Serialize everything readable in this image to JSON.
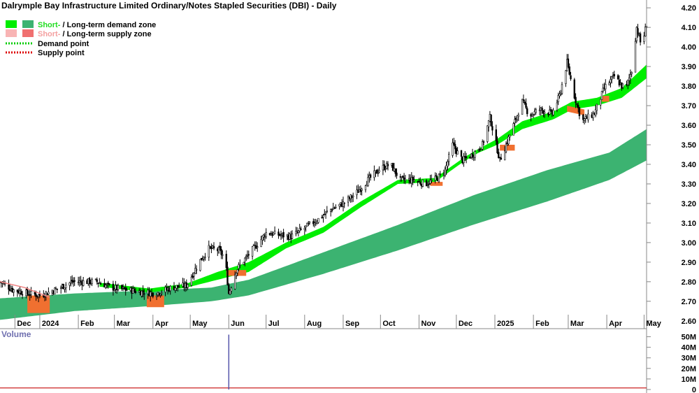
{
  "title": "Dalrymple Bay Infrastructure Limited Ordinary/Notes Stapled Securities (DBI) - Daily",
  "legend": [
    {
      "parts": [
        {
          "text": "Short-",
          "color": "#22dd22"
        },
        {
          "text": " / ",
          "color": "#000000"
        },
        {
          "text": "Long-term demand zone",
          "color": "#000000"
        }
      ],
      "swatches": [
        "#00ee00",
        "#3cb371"
      ]
    },
    {
      "parts": [
        {
          "text": "Short-",
          "color": "#f4a0a0"
        },
        {
          "text": " / ",
          "color": "#000000"
        },
        {
          "text": "Long-term supply zone",
          "color": "#000000"
        }
      ],
      "swatches": [
        "#f8b4b4",
        "#f07070"
      ]
    },
    {
      "parts": [
        {
          "text": "Demand point",
          "color": "#000000"
        }
      ],
      "dotted": "#00cc00"
    },
    {
      "parts": [
        {
          "text": "Supply point",
          "color": "#000000"
        }
      ],
      "dotted": "#dd0000"
    }
  ],
  "colors": {
    "short_demand": "#00ee00",
    "long_demand": "#3cb371",
    "supply": "#f07030",
    "candle": "#000000",
    "volume_line": "#cc2222",
    "volume_spike": "#5555aa",
    "axis": "#888888"
  },
  "chart_data": {
    "type": "line",
    "x_axis": {
      "months": [
        {
          "label": "Dec",
          "day": 12
        },
        {
          "label": "2024",
          "day": 32
        },
        {
          "label": "Feb",
          "day": 63
        },
        {
          "label": "Mar",
          "day": 92
        },
        {
          "label": "Apr",
          "day": 123
        },
        {
          "label": "May",
          "day": 153
        },
        {
          "label": "Jun",
          "day": 184
        },
        {
          "label": "Jul",
          "day": 214
        },
        {
          "label": "Aug",
          "day": 245
        },
        {
          "label": "Sep",
          "day": 276
        },
        {
          "label": "Oct",
          "day": 306
        },
        {
          "label": "Nov",
          "day": 337
        },
        {
          "label": "Dec",
          "day": 367
        },
        {
          "label": "2025",
          "day": 398
        },
        {
          "label": "Feb",
          "day": 429
        },
        {
          "label": "Mar",
          "day": 457
        },
        {
          "label": "Apr",
          "day": 488
        },
        {
          "label": "May",
          "day": 518
        }
      ],
      "range": [
        0,
        520
      ]
    },
    "y_axis": {
      "ticks": [
        "2.60",
        "2.70",
        "2.80",
        "2.90",
        "3.00",
        "3.10",
        "3.20",
        "3.30",
        "3.40",
        "3.50",
        "3.60",
        "3.70",
        "3.80",
        "3.90",
        "4.00",
        "4.10",
        "4.20"
      ],
      "range": [
        2.56,
        4.24
      ]
    },
    "price_path": [
      [
        0,
        2.8
      ],
      [
        10,
        2.76
      ],
      [
        22,
        2.74
      ],
      [
        32,
        2.73
      ],
      [
        45,
        2.76
      ],
      [
        58,
        2.8
      ],
      [
        68,
        2.8
      ],
      [
        78,
        2.8
      ],
      [
        90,
        2.77
      ],
      [
        100,
        2.76
      ],
      [
        112,
        2.75
      ],
      [
        125,
        2.74
      ],
      [
        138,
        2.77
      ],
      [
        150,
        2.78
      ],
      [
        160,
        2.9
      ],
      [
        168,
        2.97
      ],
      [
        176,
        2.96
      ],
      [
        181,
        2.92
      ],
      [
        184,
        2.74
      ],
      [
        190,
        2.86
      ],
      [
        200,
        2.94
      ],
      [
        208,
        3.0
      ],
      [
        214,
        3.05
      ],
      [
        224,
        3.04
      ],
      [
        234,
        3.03
      ],
      [
        244,
        3.07
      ],
      [
        256,
        3.12
      ],
      [
        266,
        3.17
      ],
      [
        276,
        3.2
      ],
      [
        286,
        3.25
      ],
      [
        296,
        3.32
      ],
      [
        306,
        3.38
      ],
      [
        314,
        3.4
      ],
      [
        322,
        3.32
      ],
      [
        332,
        3.32
      ],
      [
        342,
        3.3
      ],
      [
        352,
        3.33
      ],
      [
        358,
        3.37
      ],
      [
        364,
        3.5
      ],
      [
        372,
        3.42
      ],
      [
        380,
        3.45
      ],
      [
        388,
        3.5
      ],
      [
        394,
        3.64
      ],
      [
        402,
        3.42
      ],
      [
        410,
        3.55
      ],
      [
        420,
        3.72
      ],
      [
        426,
        3.65
      ],
      [
        434,
        3.68
      ],
      [
        444,
        3.66
      ],
      [
        450,
        3.75
      ],
      [
        456,
        3.92
      ],
      [
        462,
        3.75
      ],
      [
        468,
        3.62
      ],
      [
        478,
        3.66
      ],
      [
        486,
        3.79
      ],
      [
        494,
        3.85
      ],
      [
        500,
        3.8
      ],
      [
        504,
        3.8
      ],
      [
        508,
        3.88
      ],
      [
        512,
        4.1
      ],
      [
        516,
        4.0
      ],
      [
        520,
        4.12
      ]
    ],
    "short_term_demand_zone": {
      "upper": [
        [
          80,
          2.795
        ],
        [
          120,
          2.765
        ],
        [
          150,
          2.79
        ],
        [
          175,
          2.85
        ],
        [
          200,
          2.9
        ],
        [
          230,
          3.0
        ],
        [
          260,
          3.08
        ],
        [
          290,
          3.21
        ],
        [
          320,
          3.32
        ],
        [
          350,
          3.33
        ],
        [
          372,
          3.43
        ],
        [
          385,
          3.48
        ],
        [
          400,
          3.53
        ],
        [
          420,
          3.62
        ],
        [
          445,
          3.67
        ],
        [
          460,
          3.72
        ],
        [
          480,
          3.74
        ],
        [
          500,
          3.79
        ],
        [
          520,
          3.91
        ]
      ],
      "lower": [
        [
          80,
          2.775
        ],
        [
          120,
          2.745
        ],
        [
          150,
          2.77
        ],
        [
          175,
          2.81
        ],
        [
          200,
          2.85
        ],
        [
          230,
          2.97
        ],
        [
          260,
          3.05
        ],
        [
          290,
          3.18
        ],
        [
          320,
          3.3
        ],
        [
          350,
          3.31
        ],
        [
          372,
          3.41
        ],
        [
          385,
          3.46
        ],
        [
          400,
          3.5
        ],
        [
          420,
          3.58
        ],
        [
          445,
          3.63
        ],
        [
          460,
          3.68
        ],
        [
          480,
          3.7
        ],
        [
          500,
          3.74
        ],
        [
          520,
          3.84
        ]
      ]
    },
    "long_term_demand_zone": {
      "upper": [
        [
          0,
          2.715
        ],
        [
          60,
          2.74
        ],
        [
          120,
          2.755
        ],
        [
          170,
          2.77
        ],
        [
          200,
          2.81
        ],
        [
          260,
          2.95
        ],
        [
          320,
          3.09
        ],
        [
          380,
          3.24
        ],
        [
          440,
          3.37
        ],
        [
          490,
          3.46
        ],
        [
          520,
          3.58
        ]
      ],
      "lower": [
        [
          0,
          2.605
        ],
        [
          60,
          2.65
        ],
        [
          120,
          2.675
        ],
        [
          170,
          2.7
        ],
        [
          200,
          2.73
        ],
        [
          260,
          2.84
        ],
        [
          320,
          2.96
        ],
        [
          380,
          3.09
        ],
        [
          440,
          3.21
        ],
        [
          490,
          3.32
        ],
        [
          520,
          3.42
        ]
      ]
    },
    "supply_zones": [
      {
        "upper": [
          [
            22,
            2.73
          ],
          [
            40,
            2.73
          ]
        ],
        "lower": [
          [
            22,
            2.64
          ],
          [
            40,
            2.64
          ]
        ]
      },
      {
        "upper": [
          [
            118,
            2.73
          ],
          [
            132,
            2.73
          ]
        ],
        "lower": [
          [
            118,
            2.67
          ],
          [
            132,
            2.67
          ]
        ]
      },
      {
        "upper": [
          [
            182,
            2.86
          ],
          [
            198,
            2.86
          ]
        ],
        "lower": [
          [
            182,
            2.83
          ],
          [
            198,
            2.83
          ]
        ]
      },
      {
        "upper": [
          [
            346,
            3.31
          ],
          [
            356,
            3.31
          ]
        ],
        "lower": [
          [
            346,
            3.29
          ],
          [
            356,
            3.29
          ]
        ]
      },
      {
        "upper": [
          [
            402,
            3.5
          ],
          [
            414,
            3.5
          ]
        ],
        "lower": [
          [
            402,
            3.47
          ],
          [
            414,
            3.47
          ]
        ]
      },
      {
        "upper": [
          [
            456,
            3.7
          ],
          [
            470,
            3.68
          ]
        ],
        "lower": [
          [
            456,
            3.67
          ],
          [
            470,
            3.65
          ]
        ]
      },
      {
        "upper": [
          [
            484,
            3.75
          ],
          [
            490,
            3.75
          ]
        ],
        "lower": [
          [
            484,
            3.72
          ],
          [
            490,
            3.72
          ]
        ]
      }
    ],
    "supply_point_line": [
      [
        0,
        2.8
      ],
      [
        20,
        2.77
      ],
      [
        40,
        2.72
      ]
    ],
    "volume": {
      "label": "Volume",
      "ticks": [
        "0",
        "10M",
        "20M",
        "30M",
        "40M",
        "50M"
      ],
      "range": [
        0,
        55000000
      ],
      "baseline": 1500000,
      "spike": {
        "day": 184,
        "value": 52000000
      }
    }
  }
}
